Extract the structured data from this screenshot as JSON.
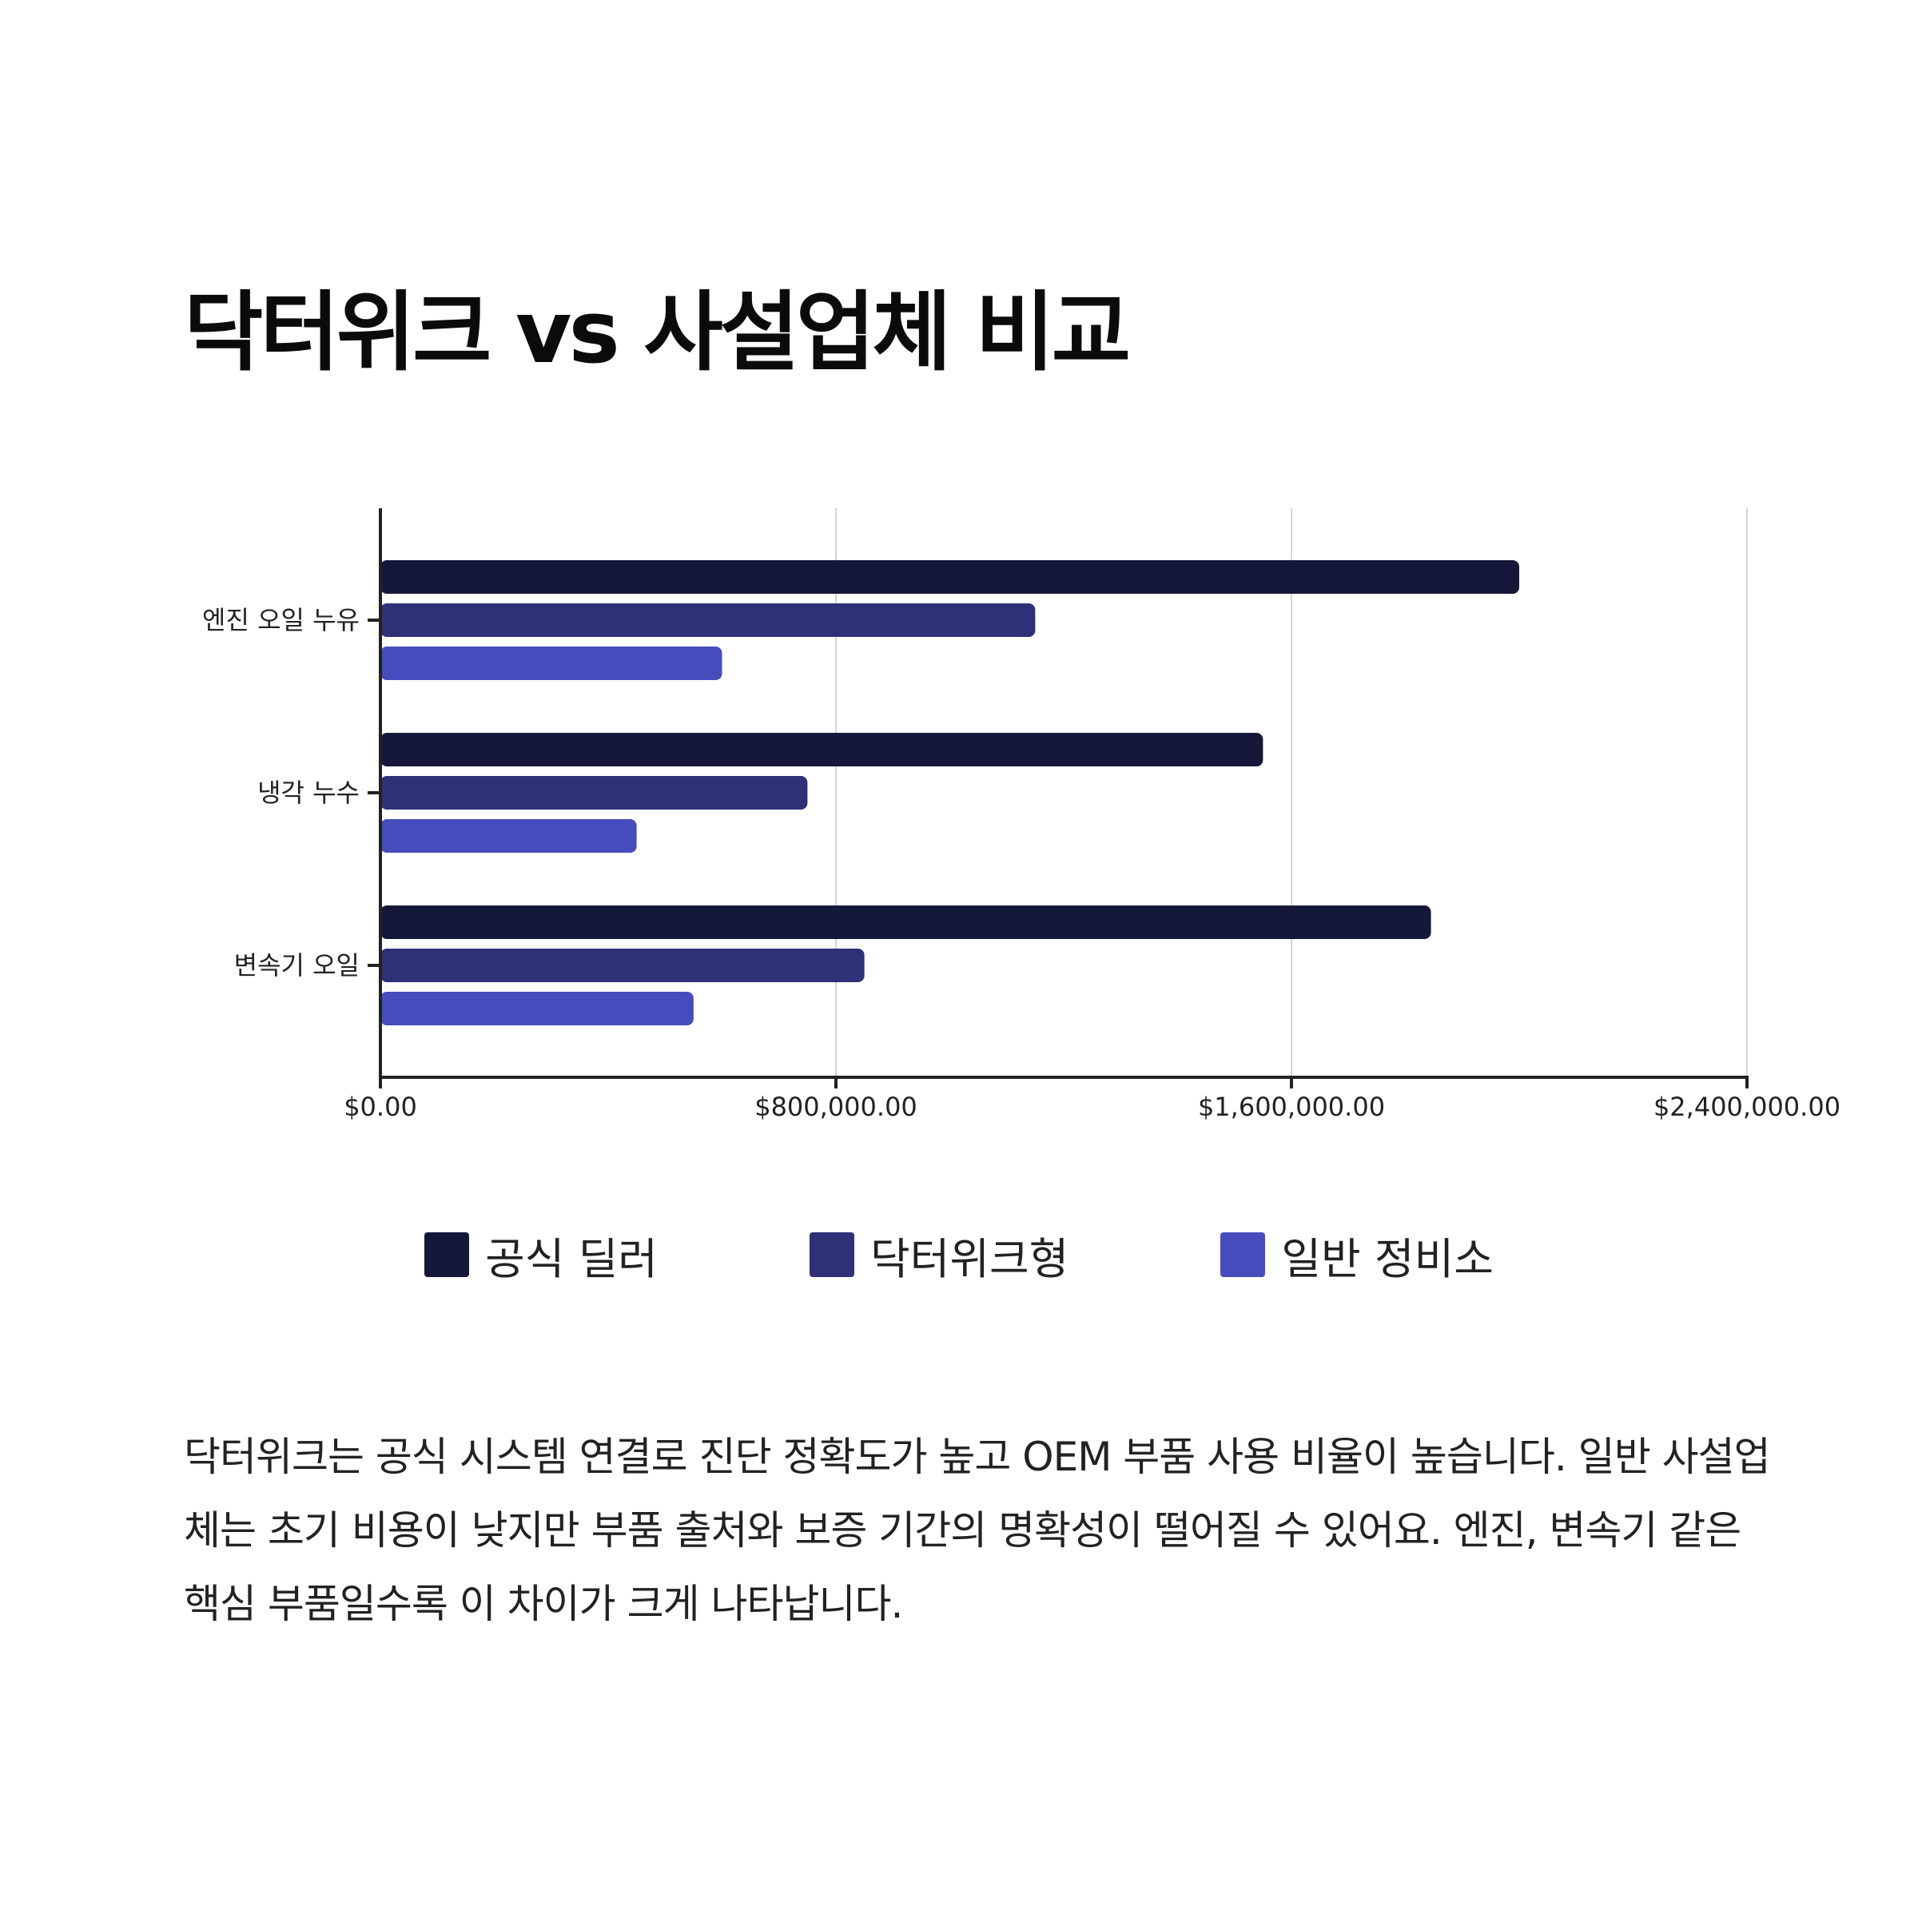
{
  "title": "닥터위크 vs 사설업체 비교",
  "chart_data": {
    "type": "bar",
    "orientation": "horizontal",
    "categories": [
      "엔진 오일 누유",
      "냉각 누수",
      "변속기 오일"
    ],
    "series": [
      {
        "name": "공식 딜러",
        "color": "#16183a",
        "values": [
          2000000,
          1550000,
          1845000
        ]
      },
      {
        "name": "닥터위크형",
        "color": "#2e3178",
        "values": [
          1150000,
          750000,
          850000
        ]
      },
      {
        "name": "일반 정비소",
        "color": "#474cbd",
        "values": [
          600000,
          450000,
          550000
        ]
      }
    ],
    "xlim": [
      0,
      2400000
    ],
    "xticks": [
      0,
      800000,
      1600000,
      2400000
    ],
    "xtick_labels": [
      "$0.00",
      "$800,000.00",
      "$1,600,000.00",
      "$2,400,000.00"
    ],
    "grid": "vertical",
    "legend_position": "bottom"
  },
  "legend": [
    {
      "label": "공식 딜러",
      "color": "#16183a"
    },
    {
      "label": "닥터위크형",
      "color": "#2e3178"
    },
    {
      "label": "일반 정비소",
      "color": "#474cbd"
    }
  ],
  "description": "닥터위크는 공식 시스템 연결로 진단 정확도가 높고 OEM 부품 사용 비율이 높습니다. 일반 사설업체는 초기 비용이 낮지만 부품 출처와 보증 기간의 명확성이 떨어질 수 있어요. 엔진, 변속기 같은 핵심 부품일수록 이 차이가 크게 나타납니다."
}
